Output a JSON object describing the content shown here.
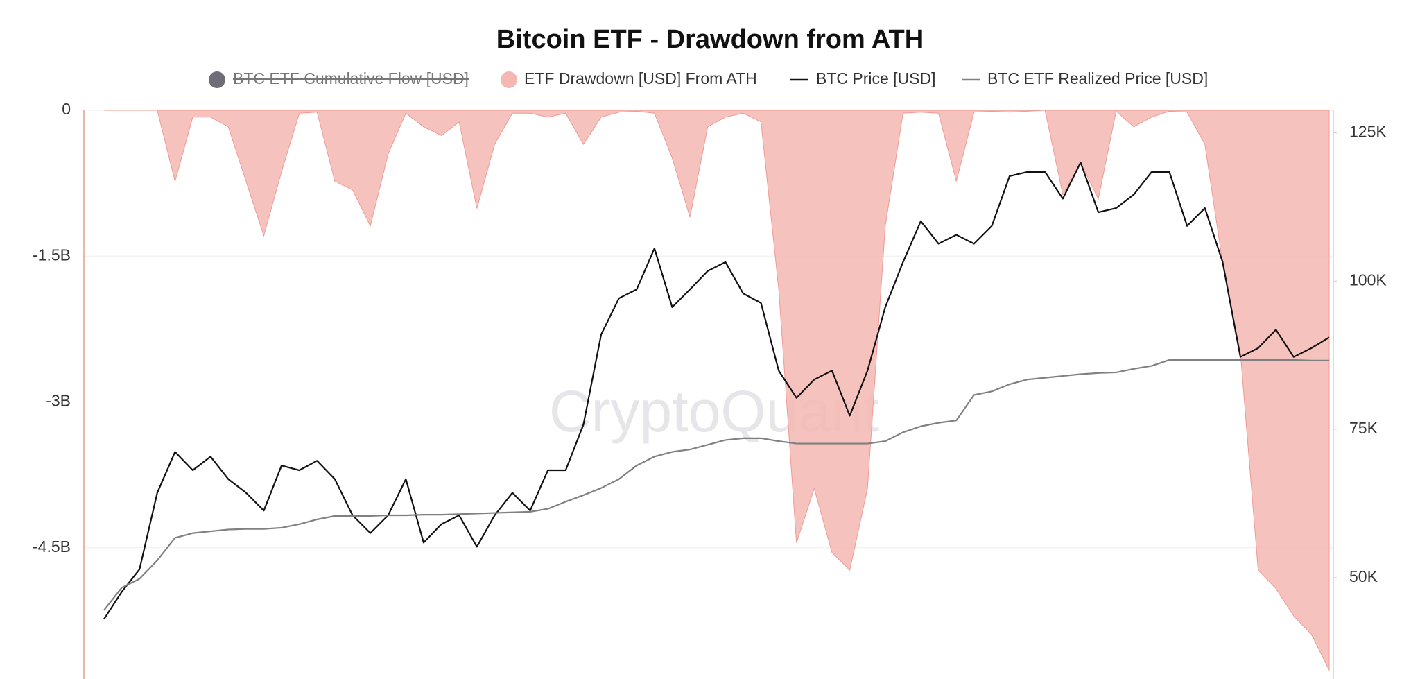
{
  "chart_data": {
    "type": "combo",
    "title": "Bitcoin ETF - Drawdown from ATH",
    "watermark": "CryptoQuant",
    "ylim": [
      -5850000000.0,
      0
    ],
    "yticks": [
      0,
      {
        "value": -1500000000.0,
        "label": "-1.5B"
      },
      {
        "value": -3000000000.0,
        "label": "-3B"
      },
      {
        "value": -4500000000.0,
        "label": "-4.5B"
      }
    ],
    "y2lim": [
      32900,
      128800
    ],
    "y2ticks": [
      {
        "value": 125000,
        "label": "125K"
      },
      {
        "value": 100000,
        "label": "100K"
      },
      {
        "value": 75000,
        "label": "75K"
      },
      {
        "value": 50000,
        "label": "50K"
      }
    ],
    "grid": true,
    "series": [
      {
        "name": "BTC ETF Cumulative Flow [USD]",
        "color": "#6e6d78",
        "kind": "line",
        "hidden": true
      },
      {
        "name": "ETF Drawdown [USD] From ATH",
        "color": "#f5b7b1",
        "kind": "area",
        "axis": "y",
        "values": [
          0,
          0,
          0,
          0,
          -730000000.0,
          -70000000.0,
          -70000000.0,
          -170000000.0,
          -730000000.0,
          -1290000000.0,
          -630000000.0,
          -30000000.0,
          -20000000.0,
          -730000000.0,
          -820000000.0,
          -1190000000.0,
          -450000000.0,
          -30000000.0,
          -170000000.0,
          -260000000.0,
          -120000000.0,
          -1010000000.0,
          -350000000.0,
          -30000000.0,
          -30000000.0,
          -70000000.0,
          -30000000.0,
          -350000000.0,
          -70000000.0,
          -20000000.0,
          -10000000.0,
          -30000000.0,
          -490000000.0,
          -1100000000.0,
          -170000000.0,
          -70000000.0,
          -30000000.0,
          -120000000.0,
          -1840000000.0,
          -4450000000.0,
          -3890000000.0,
          -4550000000.0,
          -4730000000.0,
          -3890000000.0,
          -1190000000.0,
          -30000000.0,
          -20000000.0,
          -30000000.0,
          -730000000.0,
          -20000000.0,
          -10000000.0,
          -20000000.0,
          -10000000.0,
          0,
          -870000000.0,
          -540000000.0,
          -910000000.0,
          -10000000.0,
          -170000000.0,
          -70000000.0,
          -10000000.0,
          -20000000.0,
          -350000000.0,
          -1570000000.0,
          -2490000000.0,
          -4730000000.0,
          -4920000000.0,
          -5200000000.0,
          -5390000000.0,
          -5760000000.0
        ]
      },
      {
        "name": "BTC Price [USD]",
        "color": "#111111",
        "kind": "line",
        "axis": "y2",
        "values": [
          43000,
          47600,
          51400,
          64300,
          71200,
          68100,
          70400,
          66600,
          64300,
          61300,
          68900,
          68100,
          69700,
          66600,
          60500,
          57500,
          60500,
          66600,
          55900,
          59000,
          60500,
          55200,
          60500,
          64300,
          61300,
          68100,
          68100,
          75800,
          91000,
          97100,
          98600,
          105500,
          95600,
          98600,
          101700,
          103200,
          97900,
          96300,
          84900,
          80300,
          83400,
          84900,
          77300,
          84900,
          95600,
          103200,
          110100,
          106300,
          107800,
          106300,
          109300,
          117700,
          118400,
          118400,
          113900,
          120000,
          111600,
          112300,
          114600,
          118400,
          118400,
          109300,
          112300,
          103200,
          87200,
          88700,
          91800,
          87200,
          88700,
          90500
        ]
      },
      {
        "name": "BTC ETF Realized Price [USD]",
        "color": "#808080",
        "kind": "line",
        "axis": "y2",
        "values": [
          44500,
          48300,
          49800,
          52900,
          56700,
          57500,
          57800,
          58100,
          58200,
          58200,
          58400,
          59000,
          59800,
          60400,
          60400,
          60400,
          60500,
          60500,
          60600,
          60600,
          60700,
          60800,
          60900,
          61000,
          61100,
          61600,
          62800,
          63900,
          65100,
          66600,
          68900,
          70400,
          71200,
          71600,
          72400,
          73200,
          73500,
          73500,
          73000,
          72600,
          72600,
          72600,
          72600,
          72600,
          73000,
          74500,
          75500,
          76100,
          76500,
          80800,
          81400,
          82600,
          83400,
          83700,
          84000,
          84300,
          84500,
          84600,
          85200,
          85700,
          86700,
          86700,
          86700,
          86700,
          86700,
          86700,
          86700,
          86700,
          86600,
          86600
        ]
      }
    ]
  }
}
